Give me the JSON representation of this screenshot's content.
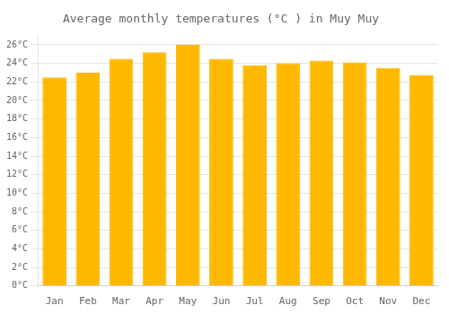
{
  "chart_data": {
    "type": "bar",
    "title": "Average monthly temperatures (°C ) in Muy Muy",
    "categories": [
      "Jan",
      "Feb",
      "Mar",
      "Apr",
      "May",
      "Jun",
      "Jul",
      "Aug",
      "Sep",
      "Oct",
      "Nov",
      "Dec"
    ],
    "values": [
      22.5,
      23.0,
      24.5,
      25.2,
      26.0,
      24.5,
      23.8,
      24.0,
      24.3,
      24.1,
      23.5,
      22.7
    ],
    "color": "#FFB800",
    "ylim": [
      0,
      27
    ],
    "yticks": [
      {
        "value": 0,
        "label": "0°C"
      },
      {
        "value": 2,
        "label": "2°C"
      },
      {
        "value": 4,
        "label": "4°C"
      },
      {
        "value": 6,
        "label": "6°C"
      },
      {
        "value": 8,
        "label": "8°C"
      },
      {
        "value": 10,
        "label": "10°C"
      },
      {
        "value": 12,
        "label": "12°C"
      },
      {
        "value": 14,
        "label": "14°C"
      },
      {
        "value": 16,
        "label": "16°C"
      },
      {
        "value": 18,
        "label": "18°C"
      },
      {
        "value": 20,
        "label": "20°C"
      },
      {
        "value": 22,
        "label": "22°C"
      },
      {
        "value": 24,
        "label": "24°C"
      },
      {
        "value": 26,
        "label": "26°C"
      }
    ],
    "grid": true
  }
}
